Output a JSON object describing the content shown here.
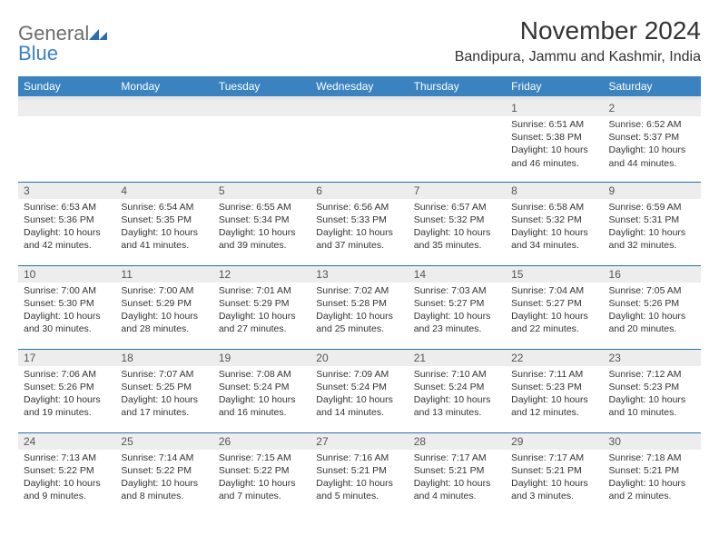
{
  "brand": {
    "general": "General",
    "blue": "Blue"
  },
  "title": "November 2024",
  "location": "Bandipura, Jammu and Kashmir, India",
  "colors": {
    "header_bg": "#3b83c0",
    "header_text": "#ffffff",
    "daynum_bg": "#ededed",
    "border": "#2a6db0",
    "body_text": "#333333",
    "logo_gray": "#6d6d6d",
    "logo_blue": "#3b83c0"
  },
  "day_headers": [
    "Sunday",
    "Monday",
    "Tuesday",
    "Wednesday",
    "Thursday",
    "Friday",
    "Saturday"
  ],
  "weeks": [
    [
      null,
      null,
      null,
      null,
      null,
      {
        "n": "1",
        "sr": "6:51 AM",
        "ss": "5:38 PM",
        "dl": "10 hours and 46 minutes."
      },
      {
        "n": "2",
        "sr": "6:52 AM",
        "ss": "5:37 PM",
        "dl": "10 hours and 44 minutes."
      }
    ],
    [
      {
        "n": "3",
        "sr": "6:53 AM",
        "ss": "5:36 PM",
        "dl": "10 hours and 42 minutes."
      },
      {
        "n": "4",
        "sr": "6:54 AM",
        "ss": "5:35 PM",
        "dl": "10 hours and 41 minutes."
      },
      {
        "n": "5",
        "sr": "6:55 AM",
        "ss": "5:34 PM",
        "dl": "10 hours and 39 minutes."
      },
      {
        "n": "6",
        "sr": "6:56 AM",
        "ss": "5:33 PM",
        "dl": "10 hours and 37 minutes."
      },
      {
        "n": "7",
        "sr": "6:57 AM",
        "ss": "5:32 PM",
        "dl": "10 hours and 35 minutes."
      },
      {
        "n": "8",
        "sr": "6:58 AM",
        "ss": "5:32 PM",
        "dl": "10 hours and 34 minutes."
      },
      {
        "n": "9",
        "sr": "6:59 AM",
        "ss": "5:31 PM",
        "dl": "10 hours and 32 minutes."
      }
    ],
    [
      {
        "n": "10",
        "sr": "7:00 AM",
        "ss": "5:30 PM",
        "dl": "10 hours and 30 minutes."
      },
      {
        "n": "11",
        "sr": "7:00 AM",
        "ss": "5:29 PM",
        "dl": "10 hours and 28 minutes."
      },
      {
        "n": "12",
        "sr": "7:01 AM",
        "ss": "5:29 PM",
        "dl": "10 hours and 27 minutes."
      },
      {
        "n": "13",
        "sr": "7:02 AM",
        "ss": "5:28 PM",
        "dl": "10 hours and 25 minutes."
      },
      {
        "n": "14",
        "sr": "7:03 AM",
        "ss": "5:27 PM",
        "dl": "10 hours and 23 minutes."
      },
      {
        "n": "15",
        "sr": "7:04 AM",
        "ss": "5:27 PM",
        "dl": "10 hours and 22 minutes."
      },
      {
        "n": "16",
        "sr": "7:05 AM",
        "ss": "5:26 PM",
        "dl": "10 hours and 20 minutes."
      }
    ],
    [
      {
        "n": "17",
        "sr": "7:06 AM",
        "ss": "5:26 PM",
        "dl": "10 hours and 19 minutes."
      },
      {
        "n": "18",
        "sr": "7:07 AM",
        "ss": "5:25 PM",
        "dl": "10 hours and 17 minutes."
      },
      {
        "n": "19",
        "sr": "7:08 AM",
        "ss": "5:24 PM",
        "dl": "10 hours and 16 minutes."
      },
      {
        "n": "20",
        "sr": "7:09 AM",
        "ss": "5:24 PM",
        "dl": "10 hours and 14 minutes."
      },
      {
        "n": "21",
        "sr": "7:10 AM",
        "ss": "5:24 PM",
        "dl": "10 hours and 13 minutes."
      },
      {
        "n": "22",
        "sr": "7:11 AM",
        "ss": "5:23 PM",
        "dl": "10 hours and 12 minutes."
      },
      {
        "n": "23",
        "sr": "7:12 AM",
        "ss": "5:23 PM",
        "dl": "10 hours and 10 minutes."
      }
    ],
    [
      {
        "n": "24",
        "sr": "7:13 AM",
        "ss": "5:22 PM",
        "dl": "10 hours and 9 minutes."
      },
      {
        "n": "25",
        "sr": "7:14 AM",
        "ss": "5:22 PM",
        "dl": "10 hours and 8 minutes."
      },
      {
        "n": "26",
        "sr": "7:15 AM",
        "ss": "5:22 PM",
        "dl": "10 hours and 7 minutes."
      },
      {
        "n": "27",
        "sr": "7:16 AM",
        "ss": "5:21 PM",
        "dl": "10 hours and 5 minutes."
      },
      {
        "n": "28",
        "sr": "7:17 AM",
        "ss": "5:21 PM",
        "dl": "10 hours and 4 minutes."
      },
      {
        "n": "29",
        "sr": "7:17 AM",
        "ss": "5:21 PM",
        "dl": "10 hours and 3 minutes."
      },
      {
        "n": "30",
        "sr": "7:18 AM",
        "ss": "5:21 PM",
        "dl": "10 hours and 2 minutes."
      }
    ]
  ],
  "labels": {
    "sunrise": "Sunrise: ",
    "sunset": "Sunset: ",
    "daylight": "Daylight: "
  }
}
